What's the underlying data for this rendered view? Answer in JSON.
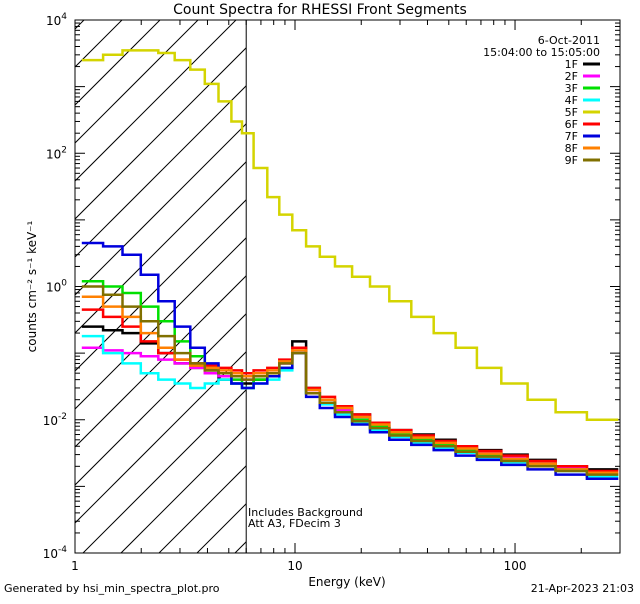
{
  "chart_data": {
    "type": "line",
    "title": "Count Spectra for RHESSI Front Segments",
    "xlabel": "Energy (keV)",
    "ylabel": "counts cm⁻² s⁻¹ keV⁻¹",
    "x_scale": "log",
    "y_scale": "log",
    "xlim": [
      1,
      300
    ],
    "ylim": [
      0.0001,
      10000
    ],
    "x_ticks": [
      {
        "value": 1,
        "label": "1"
      },
      {
        "value": 10,
        "label": "10"
      },
      {
        "value": 100,
        "label": "100"
      }
    ],
    "y_ticks": [
      {
        "value": 0.0001,
        "label": "10",
        "exp": "-4"
      },
      {
        "value": 0.01,
        "label": "10",
        "exp": "-2"
      },
      {
        "value": 1,
        "label": "10",
        "exp": "0"
      },
      {
        "value": 100,
        "label": "10",
        "exp": "2"
      },
      {
        "value": 10000,
        "label": "10",
        "exp": "4"
      }
    ],
    "date": "6-Oct-2011",
    "time_range": "15:04:00 to 15:05:00",
    "attenuator_region": {
      "x_max": 6
    },
    "annotations": [
      "Includes Background",
      "Att A3, FDecim 3"
    ],
    "energy_bins": [
      1.2,
      1.5,
      1.8,
      2.2,
      2.6,
      3.1,
      3.6,
      4.2,
      4.8,
      5.5,
      6.0,
      7.0,
      8.0,
      9.0,
      10.5,
      12.0,
      14.0,
      16.5,
      20,
      24,
      30,
      38,
      48,
      60,
      75,
      100,
      130,
      180,
      250
    ],
    "series": [
      {
        "name": "1F",
        "color": "#000000",
        "values": [
          0.25,
          0.22,
          0.2,
          0.14,
          0.1,
          0.07,
          0.06,
          0.055,
          0.04,
          0.035,
          0.035,
          0.04,
          0.05,
          0.07,
          0.15,
          0.03,
          0.02,
          0.015,
          0.012,
          0.009,
          0.007,
          0.006,
          0.005,
          0.004,
          0.0035,
          0.003,
          0.0025,
          0.002,
          0.0018
        ]
      },
      {
        "name": "2F",
        "color": "#ff00ff",
        "values": [
          0.12,
          0.11,
          0.1,
          0.09,
          0.08,
          0.07,
          0.06,
          0.05,
          0.045,
          0.04,
          0.04,
          0.045,
          0.05,
          0.07,
          0.12,
          0.028,
          0.018,
          0.014,
          0.011,
          0.008,
          0.0065,
          0.0055,
          0.0045,
          0.0038,
          0.0032,
          0.0027,
          0.0023,
          0.0019,
          0.0016
        ]
      },
      {
        "name": "3F",
        "color": "#00e000",
        "values": [
          1.2,
          1.0,
          0.8,
          0.5,
          0.3,
          0.15,
          0.09,
          0.06,
          0.05,
          0.04,
          0.03,
          0.04,
          0.05,
          0.06,
          0.12,
          0.025,
          0.018,
          0.013,
          0.01,
          0.008,
          0.006,
          0.005,
          0.0042,
          0.0035,
          0.003,
          0.0025,
          0.0022,
          0.0018,
          0.0015
        ]
      },
      {
        "name": "4F",
        "color": "#00ffff",
        "values": [
          0.18,
          0.1,
          0.07,
          0.05,
          0.04,
          0.035,
          0.03,
          0.035,
          0.04,
          0.035,
          0.03,
          0.035,
          0.04,
          0.055,
          0.1,
          0.025,
          0.017,
          0.012,
          0.009,
          0.007,
          0.0055,
          0.0045,
          0.0038,
          0.0032,
          0.0027,
          0.0023,
          0.002,
          0.0017,
          0.0014
        ]
      },
      {
        "name": "5F",
        "color": "#d4d400",
        "values": [
          2500,
          3000,
          3500,
          3500,
          3200,
          2500,
          1800,
          1100,
          600,
          300,
          200,
          60,
          22,
          12,
          7,
          4,
          2.8,
          2,
          1.4,
          1.0,
          0.6,
          0.35,
          0.2,
          0.12,
          0.06,
          0.035,
          0.02,
          0.013,
          0.01
        ]
      },
      {
        "name": "6F",
        "color": "#ff0000",
        "values": [
          0.45,
          0.35,
          0.25,
          0.15,
          0.1,
          0.08,
          0.07,
          0.065,
          0.06,
          0.055,
          0.05,
          0.055,
          0.06,
          0.08,
          0.12,
          0.03,
          0.022,
          0.016,
          0.012,
          0.009,
          0.007,
          0.0058,
          0.0048,
          0.004,
          0.0034,
          0.0029,
          0.0024,
          0.002,
          0.0017
        ]
      },
      {
        "name": "7F",
        "color": "#0000dd",
        "values": [
          4.5,
          4.0,
          3.0,
          1.5,
          0.6,
          0.25,
          0.12,
          0.07,
          0.05,
          0.035,
          0.03,
          0.035,
          0.045,
          0.06,
          0.1,
          0.022,
          0.015,
          0.011,
          0.0085,
          0.0065,
          0.005,
          0.0042,
          0.0035,
          0.0029,
          0.0025,
          0.0021,
          0.0018,
          0.0015,
          0.0013
        ]
      },
      {
        "name": "8F",
        "color": "#ff8000",
        "values": [
          0.7,
          0.5,
          0.35,
          0.2,
          0.12,
          0.08,
          0.065,
          0.06,
          0.055,
          0.05,
          0.045,
          0.05,
          0.055,
          0.075,
          0.11,
          0.028,
          0.02,
          0.015,
          0.011,
          0.0085,
          0.0065,
          0.0054,
          0.0045,
          0.0037,
          0.0031,
          0.0026,
          0.0022,
          0.0018,
          0.0016
        ]
      },
      {
        "name": "9F",
        "color": "#807000",
        "values": [
          1.0,
          0.75,
          0.5,
          0.3,
          0.18,
          0.1,
          0.07,
          0.055,
          0.05,
          0.045,
          0.04,
          0.045,
          0.05,
          0.07,
          0.1,
          0.025,
          0.018,
          0.013,
          0.0095,
          0.0075,
          0.0058,
          0.0048,
          0.004,
          0.0033,
          0.0028,
          0.0024,
          0.002,
          0.0017,
          0.0015
        ]
      }
    ]
  },
  "footer": {
    "left": "Generated by hsi_min_spectra_plot.pro",
    "right": "21-Apr-2023 21:03"
  }
}
